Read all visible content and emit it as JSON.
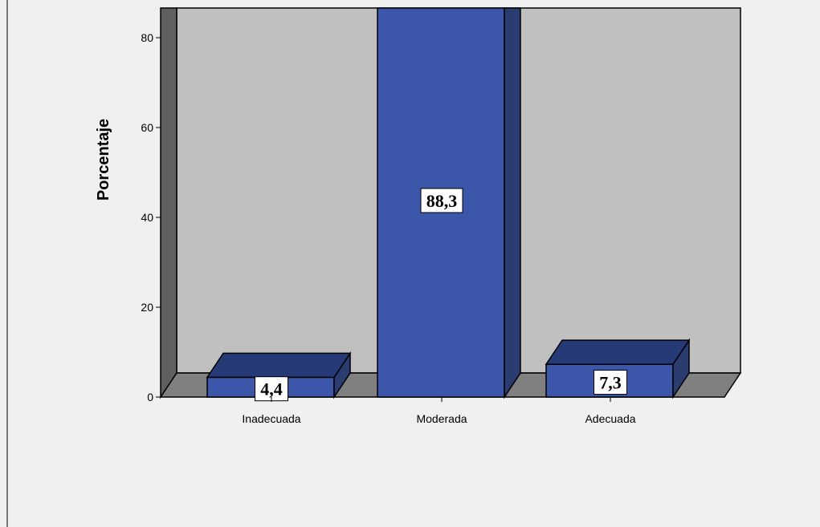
{
  "chart_data": {
    "type": "bar",
    "categories": [
      "Inadecuada",
      "Moderada",
      "Adecuada"
    ],
    "values": [
      4.4,
      88.3,
      7.3
    ],
    "data_labels": [
      "4,4",
      "88,3",
      "7,3"
    ],
    "title": "",
    "xlabel": "",
    "ylabel": "Porcentaje",
    "ylim": [
      0,
      80
    ],
    "yticks": [
      0,
      20,
      40,
      60,
      80
    ],
    "ytick_labels": [
      "0",
      "20",
      "40",
      "60",
      "80"
    ],
    "grid": false,
    "legend": "none",
    "three_d": true,
    "bar_color": "#3c57aa",
    "bar_top_color": "#263a78",
    "bar_side_color": "#2a3c70",
    "wall_color": "#c0c0c0",
    "floor_color": "#808080",
    "side_wall_color": "#606060",
    "background_color": "#f0f0f0"
  }
}
